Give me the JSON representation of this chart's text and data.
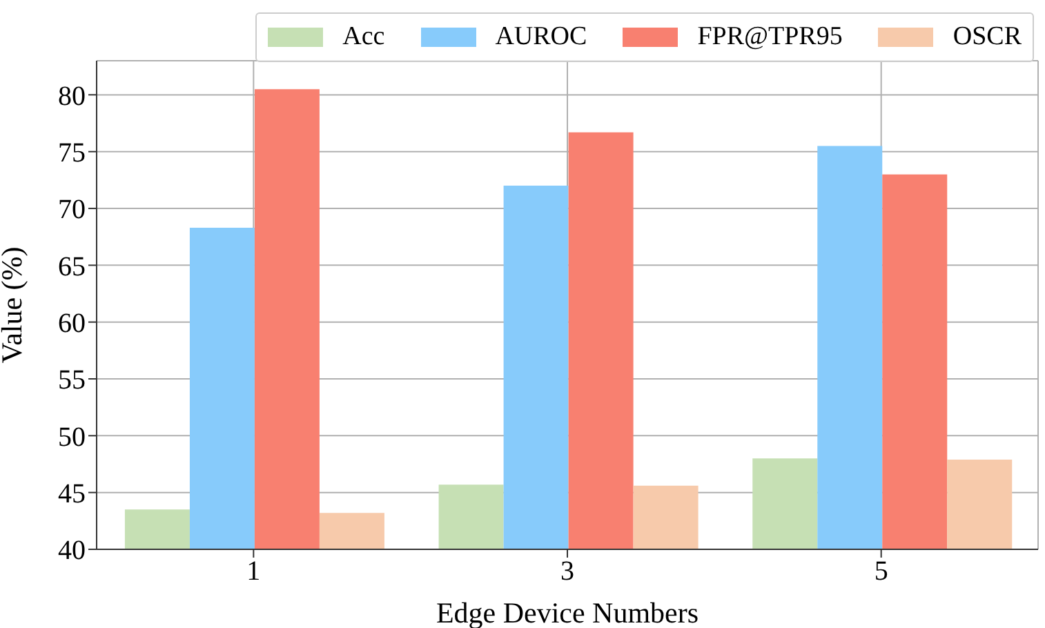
{
  "chart_data": {
    "type": "bar",
    "xlabel": "Edge Device Numbers",
    "ylabel": "Value (%)",
    "categories": [
      "1",
      "3",
      "5"
    ],
    "series": [
      {
        "name": "Acc",
        "color": "#c6e0b4",
        "values": [
          43.5,
          45.7,
          48.0
        ]
      },
      {
        "name": "AUROC",
        "color": "#87cbfb",
        "values": [
          68.3,
          72.0,
          75.5
        ]
      },
      {
        "name": "FPR@TPR95",
        "color": "#f88070",
        "values": [
          80.5,
          76.7,
          73.0
        ]
      },
      {
        "name": "OSCR",
        "color": "#f7caab",
        "values": [
          43.2,
          45.6,
          47.9
        ]
      }
    ],
    "ylim": [
      40,
      83
    ],
    "yticks": [
      40,
      45,
      50,
      55,
      60,
      65,
      70,
      75,
      80
    ],
    "grid": true,
    "legend": "top right"
  }
}
